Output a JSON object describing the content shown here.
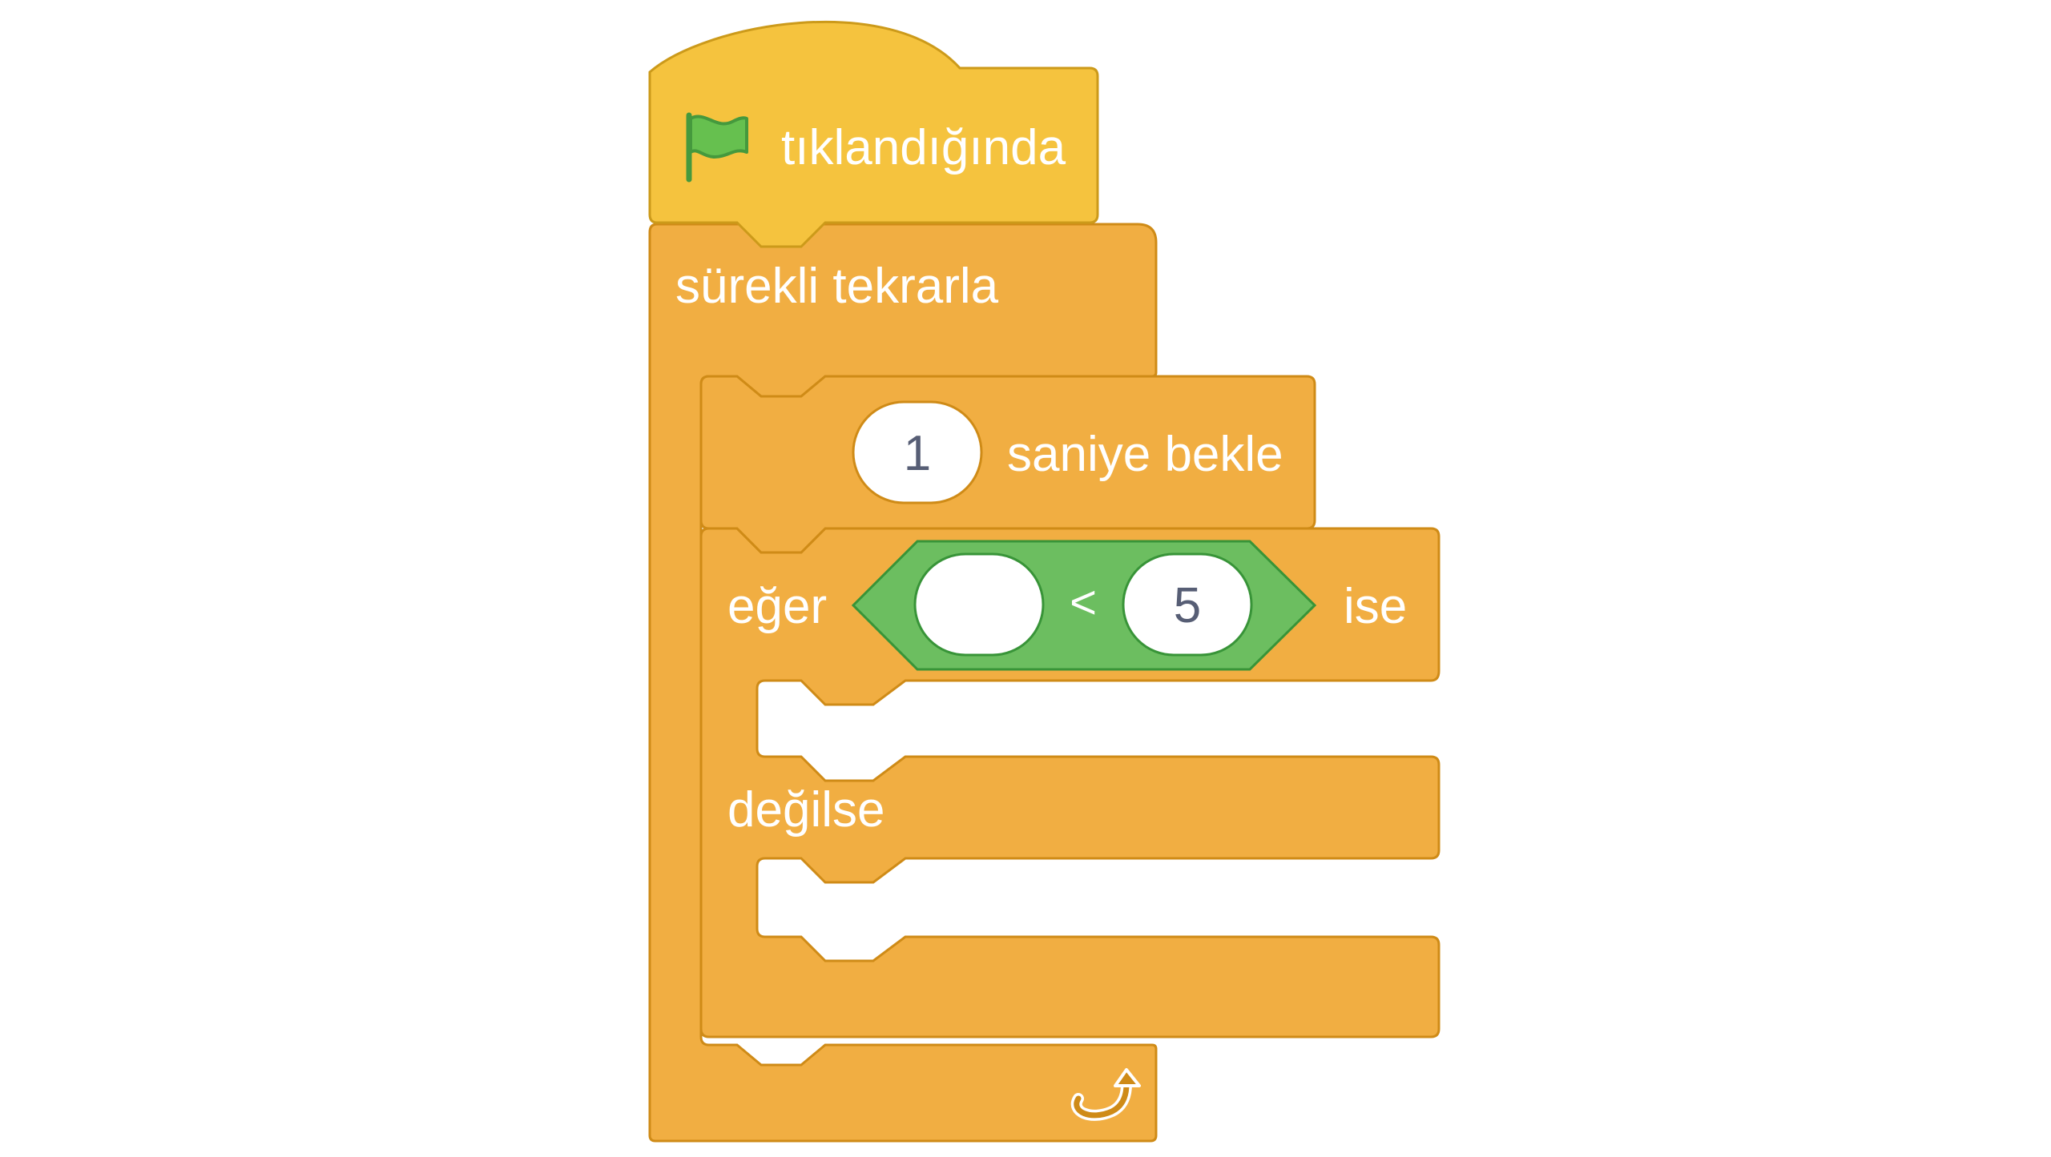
{
  "script": {
    "hat": {
      "label": "tıklandığında",
      "icon": "green-flag-icon"
    },
    "forever": {
      "label": "sürekli tekrarla",
      "icon": "loop-arrow-icon"
    },
    "wait": {
      "value": "1",
      "label": "saniye bekle"
    },
    "if_else": {
      "if_label": "eğer",
      "then_label": "ise",
      "else_label": "değilse",
      "condition": {
        "operator": "<",
        "left_value": "",
        "right_value": "5"
      }
    }
  },
  "colors": {
    "events": "#F5C33E",
    "events_border": "#CC9A1A",
    "control": "#F1AE42",
    "control_border": "#CF8B17",
    "operators": "#6CBE60",
    "operators_border": "#389438",
    "input_bg": "#FFFFFF",
    "text_light": "#FFFFFF",
    "text_dark": "#575E75"
  }
}
